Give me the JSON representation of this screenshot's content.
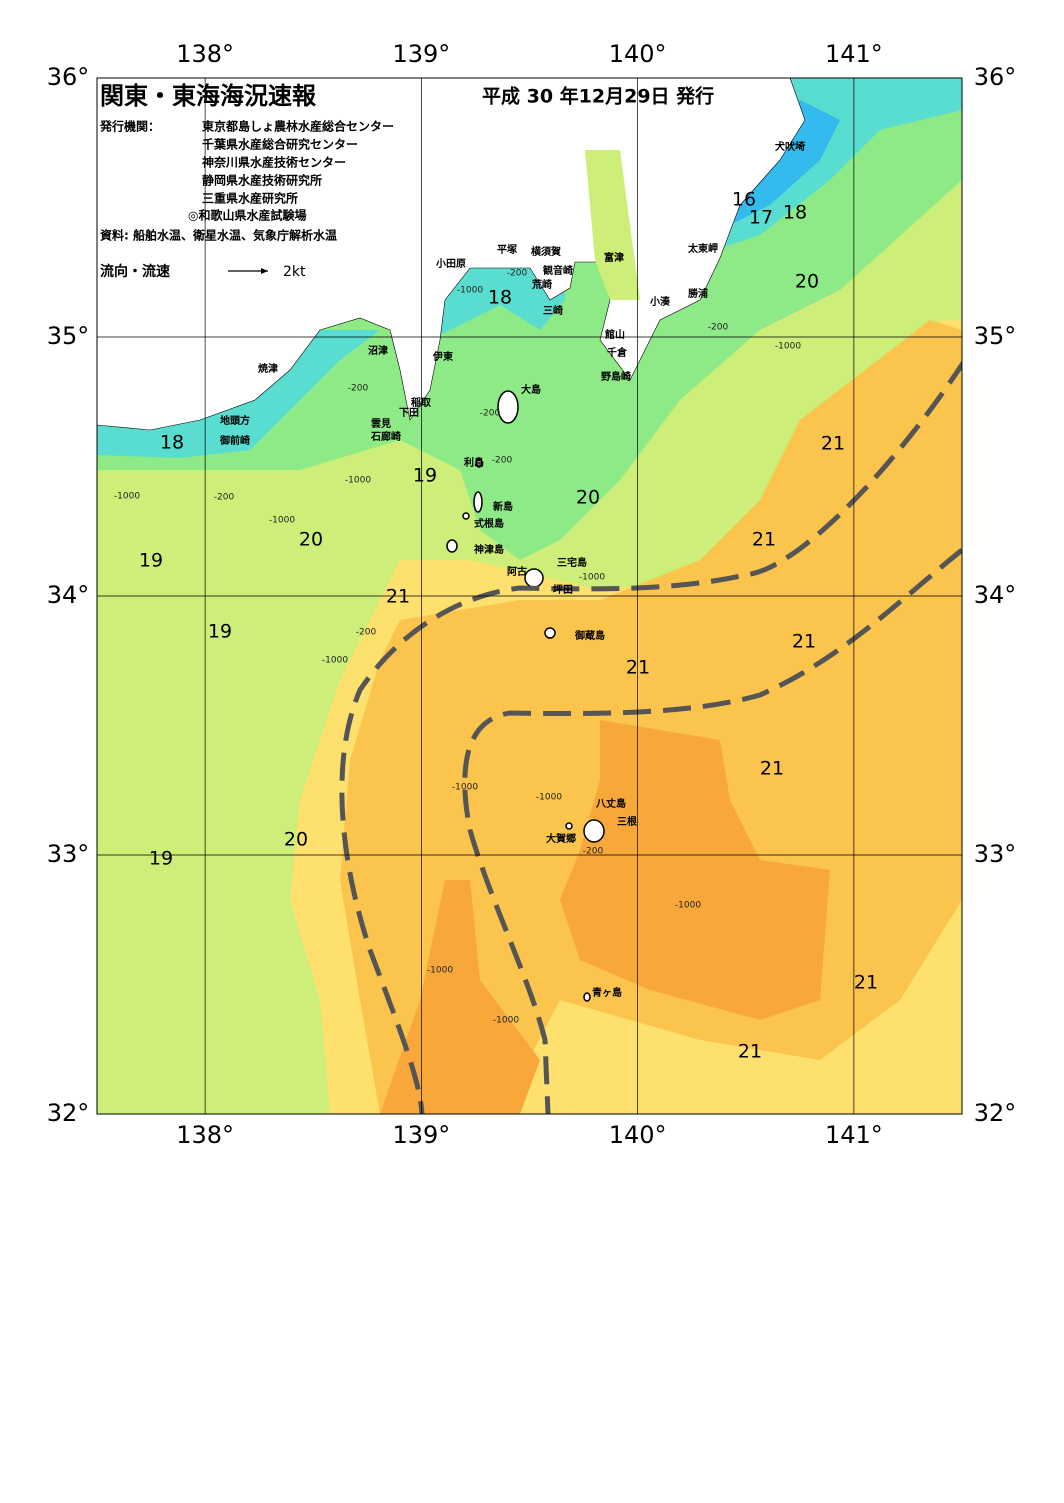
{
  "header": {
    "title": "関東・東海海況速報",
    "issue_date": "平成 30 年12月29日 発行",
    "publisher_label": "発行機関：",
    "publishers": [
      "東京都島しょ農林水産総合センター",
      "千葉県水産総合研究センター",
      "神奈川県水産技術センター",
      "静岡県水産技術研究所",
      "三重県水産研究所",
      "◎和歌山県水産試験場"
    ],
    "source": "資料: 船舶水温、衛星水温、気象庁解析水温",
    "current_legend": "流向・流速",
    "current_unit": "2kt"
  },
  "map": {
    "xlim": [
      137.5,
      141.5
    ],
    "ylim": [
      32,
      36
    ],
    "xticks": [
      {
        "value": 138,
        "label": "138°"
      },
      {
        "value": 139,
        "label": "139°"
      },
      {
        "value": 140,
        "label": "140°"
      },
      {
        "value": 141,
        "label": "141°"
      }
    ],
    "yticks": [
      {
        "value": 32,
        "label": "32°"
      },
      {
        "value": 33,
        "label": "33°"
      },
      {
        "value": 34,
        "label": "34°"
      },
      {
        "value": 35,
        "label": "35°"
      },
      {
        "value": 36,
        "label": "36°"
      }
    ],
    "grid": true
  },
  "places": [
    "犬吠埼",
    "太東岬",
    "勝浦",
    "小湊",
    "富津",
    "横須賀",
    "観音崎",
    "平塚",
    "荒崎",
    "小田原",
    "三崎",
    "館山",
    "千倉",
    "野島崎",
    "沼津",
    "伊東",
    "大島",
    "焼津",
    "稲取",
    "下田",
    "雲見",
    "石廊崎",
    "地頭方",
    "御前崎",
    "利島",
    "新島",
    "式根島",
    "神津島",
    "三宅島",
    "阿古",
    "坪田",
    "御蔵島",
    "八丈島",
    "三根",
    "大賀郷",
    "青ヶ島"
  ],
  "isotherm_labels": [
    16,
    17,
    18,
    20,
    18,
    18,
    19,
    20,
    21,
    21,
    20,
    19,
    21,
    19,
    21,
    21,
    21,
    20,
    19,
    21,
    21
  ],
  "depth_labels": [
    -200,
    -1000,
    -200,
    -1000,
    -200,
    -200,
    -200,
    -1000,
    -200,
    -1000,
    -1000,
    -1000,
    -200,
    -1000,
    -1000,
    -1000,
    -200,
    -1000,
    -1000,
    -1000
  ]
}
